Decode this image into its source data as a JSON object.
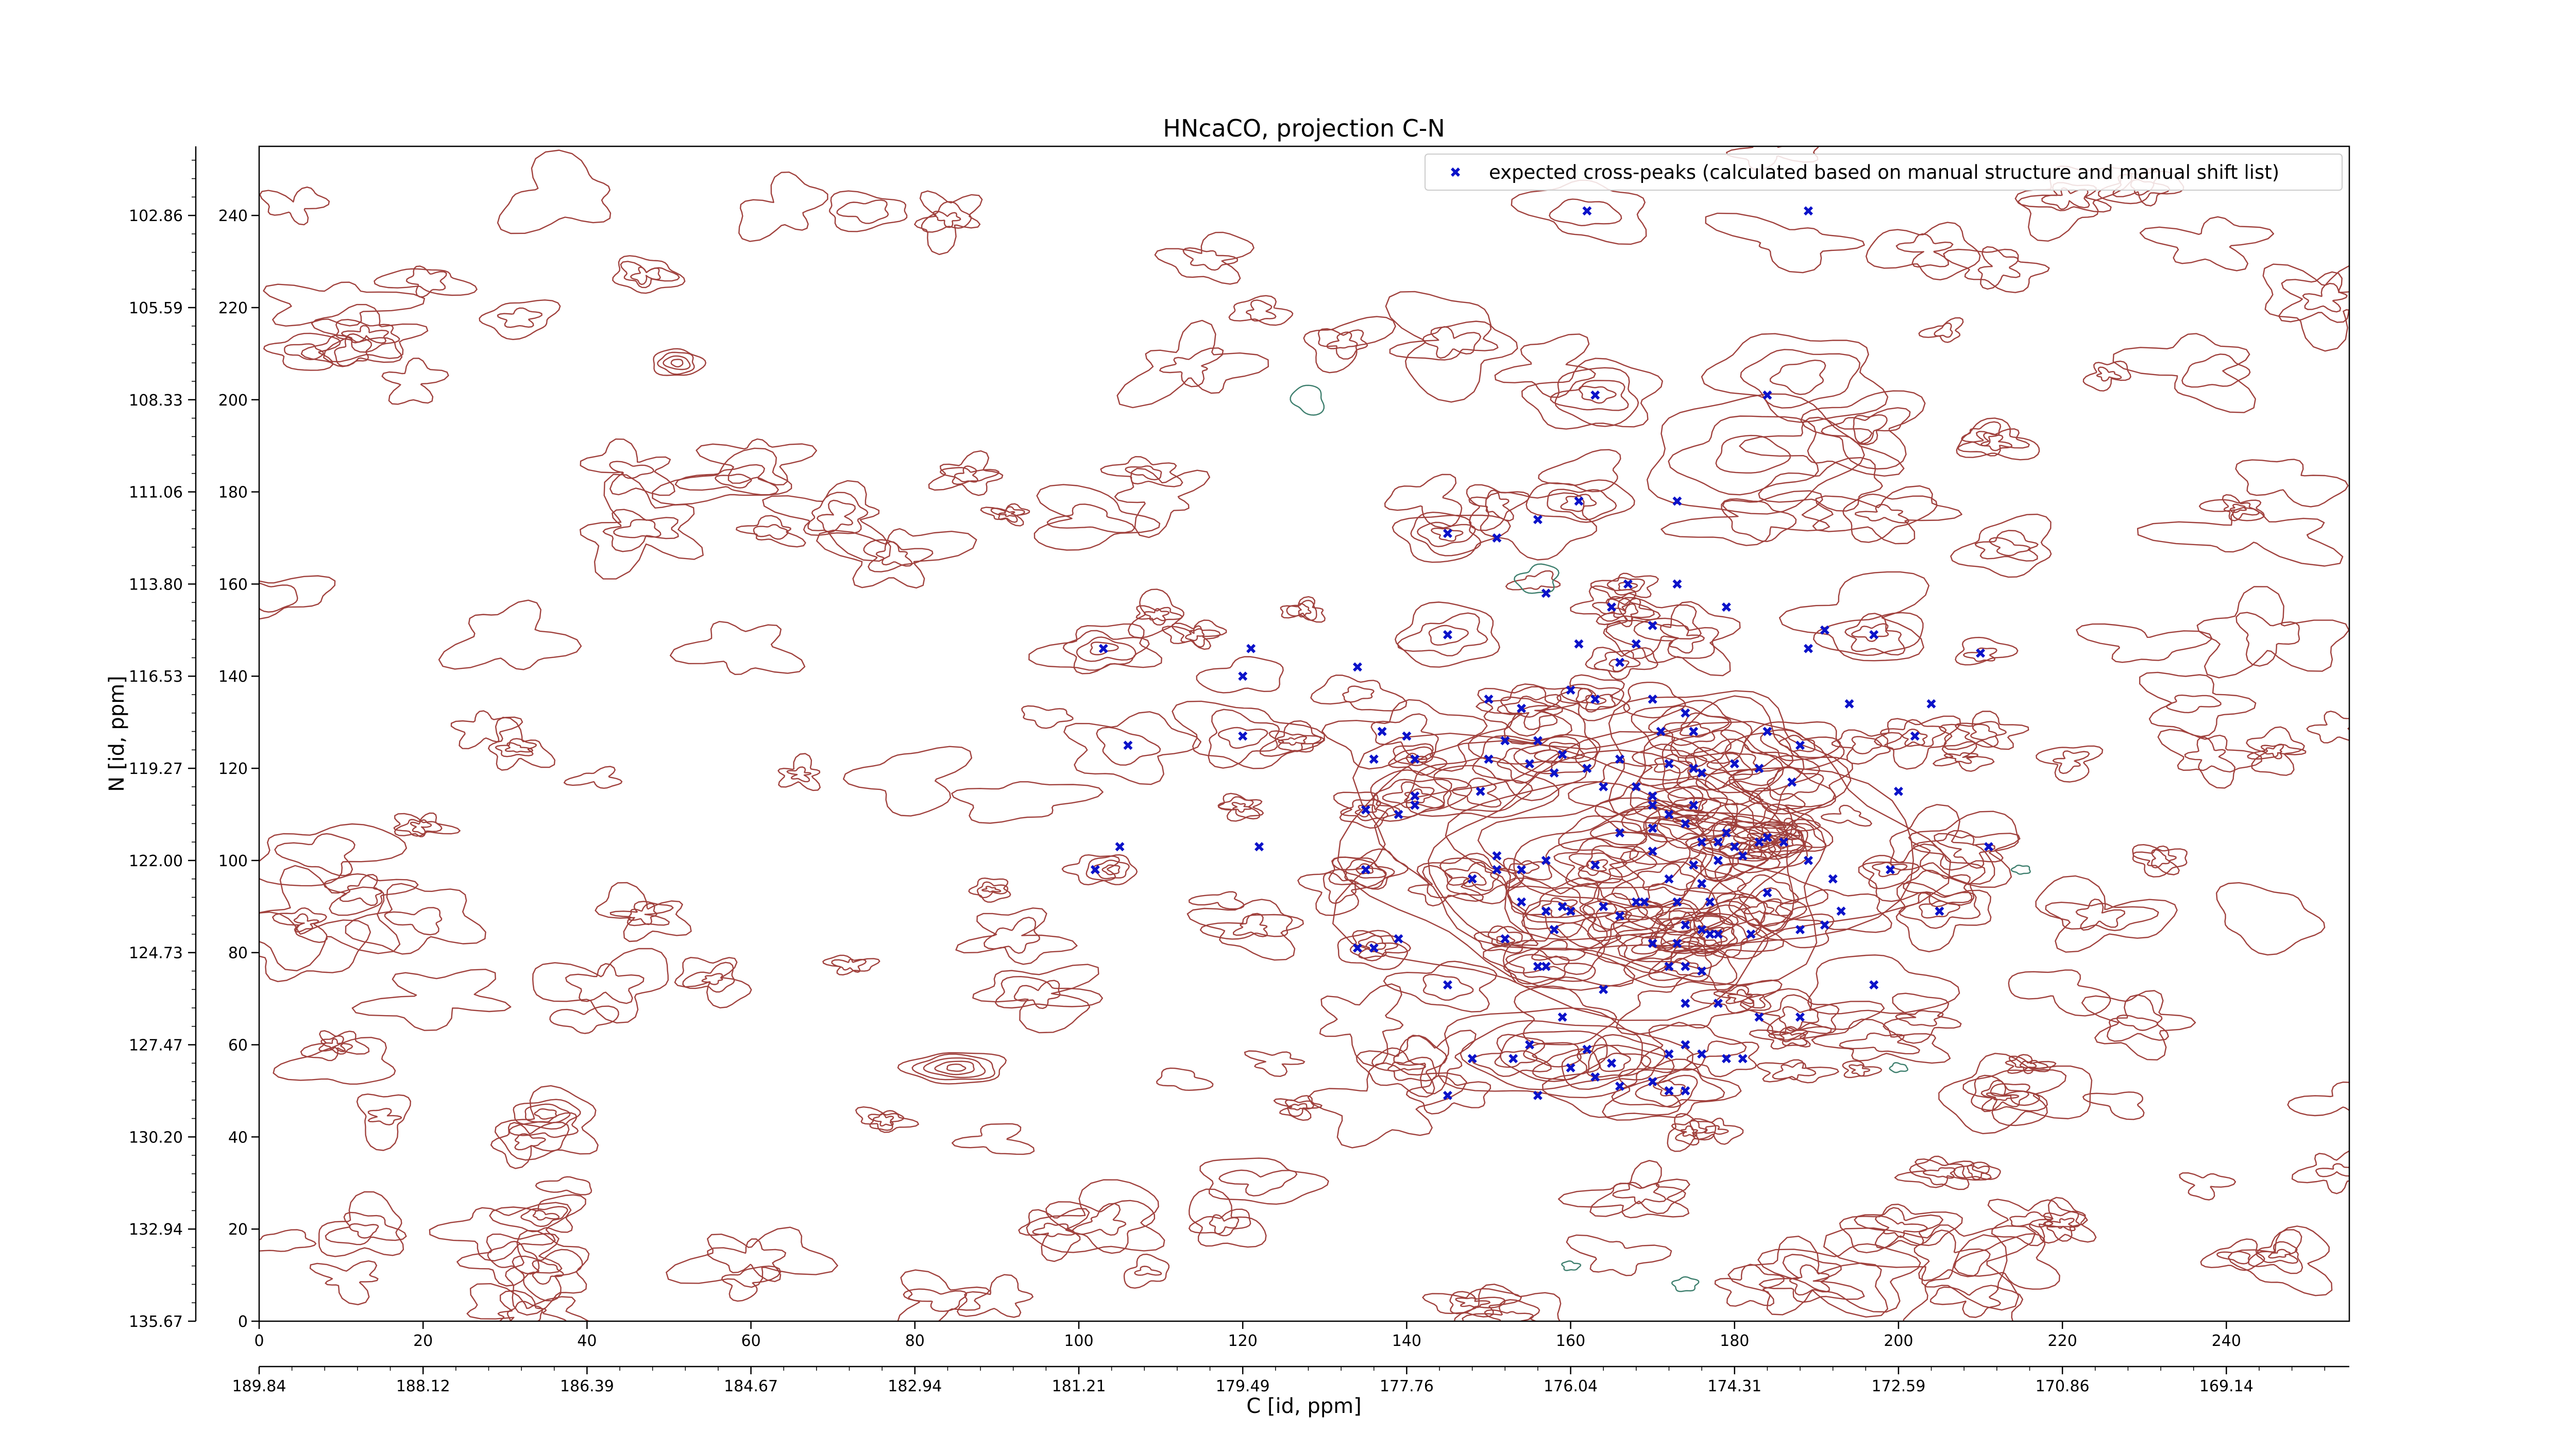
{
  "chart_data": {
    "type": "scatter",
    "title": "HNcaCO, projection C-N",
    "xlabel": "C [id, ppm]",
    "ylabel": "N [id, ppm]",
    "xlim": [
      0,
      255
    ],
    "ylim": [
      0,
      255
    ],
    "x_ticks": [
      0,
      20,
      40,
      60,
      80,
      100,
      120,
      140,
      160,
      180,
      200,
      220,
      240
    ],
    "y_ticks": [
      0,
      20,
      40,
      60,
      80,
      100,
      120,
      140,
      160,
      180,
      200,
      220,
      240
    ],
    "x_ppm_tick_labels": [
      "189.84",
      "188.12",
      "186.39",
      "184.67",
      "182.94",
      "181.21",
      "179.49",
      "177.76",
      "176.04",
      "174.31",
      "172.59",
      "170.86",
      "169.14"
    ],
    "y_ppm_tick_labels": [
      "135.67",
      "132.94",
      "130.20",
      "127.47",
      "124.73",
      "122.00",
      "119.27",
      "116.53",
      "113.80",
      "111.06",
      "108.33",
      "105.59",
      "102.86"
    ],
    "legend": {
      "location": "top-right",
      "label": "expected cross-peaks (calculated based on manual structure and manual shift list)"
    },
    "grid": false,
    "colors": {
      "contour_positive": "#a0413d",
      "contour_negative": "#3e7f6e",
      "marker": "#0b12c9"
    },
    "series": [
      {
        "name": "expected cross-peaks (calculated based on manual structure and manual shift list)",
        "marker": "x-filled",
        "points": [
          [
            162,
            241
          ],
          [
            189,
            241
          ],
          [
            163,
            201
          ],
          [
            184,
            201
          ],
          [
            161,
            178
          ],
          [
            173,
            178
          ],
          [
            145,
            171
          ],
          [
            151,
            170
          ],
          [
            156,
            174
          ],
          [
            173,
            160
          ],
          [
            167,
            160
          ],
          [
            157,
            158
          ],
          [
            165,
            155
          ],
          [
            179,
            155
          ],
          [
            103,
            146
          ],
          [
            121,
            146
          ],
          [
            145,
            149
          ],
          [
            161,
            147
          ],
          [
            166,
            143
          ],
          [
            168,
            147
          ],
          [
            170,
            151
          ],
          [
            191,
            150
          ],
          [
            197,
            149
          ],
          [
            189,
            146
          ],
          [
            210,
            145
          ],
          [
            134,
            142
          ],
          [
            120,
            140
          ],
          [
            150,
            135
          ],
          [
            154,
            133
          ],
          [
            160,
            137
          ],
          [
            163,
            135
          ],
          [
            171,
            128
          ],
          [
            175,
            128
          ],
          [
            184,
            128
          ],
          [
            188,
            125
          ],
          [
            194,
            134
          ],
          [
            202,
            127
          ],
          [
            204,
            134
          ],
          [
            120,
            127
          ],
          [
            152,
            126
          ],
          [
            156,
            126
          ],
          [
            166,
            122
          ],
          [
            183,
            120
          ],
          [
            175,
            120
          ],
          [
            106,
            125
          ],
          [
            137,
            128
          ],
          [
            140,
            127
          ],
          [
            136,
            122
          ],
          [
            141,
            122
          ],
          [
            150,
            122
          ],
          [
            155,
            121
          ],
          [
            158,
            119
          ],
          [
            159,
            123
          ],
          [
            162,
            120
          ],
          [
            172,
            121
          ],
          [
            176,
            119
          ],
          [
            180,
            121
          ],
          [
            200,
            115
          ],
          [
            141,
            114
          ],
          [
            141,
            112
          ],
          [
            135,
            111
          ],
          [
            139,
            110
          ],
          [
            149,
            115
          ],
          [
            164,
            116
          ],
          [
            168,
            116
          ],
          [
            170,
            114
          ],
          [
            170,
            112
          ],
          [
            172,
            110
          ],
          [
            175,
            112
          ],
          [
            170,
            107
          ],
          [
            174,
            108
          ],
          [
            179,
            106
          ],
          [
            176,
            104
          ],
          [
            178,
            104
          ],
          [
            180,
            103
          ],
          [
            184,
            105
          ],
          [
            186,
            104
          ],
          [
            189,
            100
          ],
          [
            199,
            98
          ],
          [
            211,
            103
          ],
          [
            187,
            117
          ],
          [
            174,
            132
          ],
          [
            170,
            135
          ],
          [
            105,
            103
          ],
          [
            102,
            98
          ],
          [
            122,
            103
          ],
          [
            135,
            98
          ],
          [
            151,
            101
          ],
          [
            154,
            98
          ],
          [
            157,
            100
          ],
          [
            163,
            99
          ],
          [
            170,
            102
          ],
          [
            166,
            106
          ],
          [
            175,
            99
          ],
          [
            178,
            100
          ],
          [
            181,
            101
          ],
          [
            183,
            104
          ],
          [
            176,
            95
          ],
          [
            172,
            96
          ],
          [
            169,
            91
          ],
          [
            173,
            91
          ],
          [
            177,
            91
          ],
          [
            184,
            93
          ],
          [
            192,
            96
          ],
          [
            205,
            89
          ],
          [
            151,
            98
          ],
          [
            148,
            96
          ],
          [
            154,
            91
          ],
          [
            159,
            90
          ],
          [
            164,
            90
          ],
          [
            166,
            88
          ],
          [
            158,
            85
          ],
          [
            174,
            86
          ],
          [
            176,
            85
          ],
          [
            178,
            84
          ],
          [
            182,
            84
          ],
          [
            188,
            85
          ],
          [
            191,
            86
          ],
          [
            193,
            89
          ],
          [
            134,
            81
          ],
          [
            136,
            81
          ],
          [
            139,
            83
          ],
          [
            152,
            83
          ],
          [
            157,
            89
          ],
          [
            160,
            89
          ],
          [
            168,
            91
          ],
          [
            177,
            84
          ],
          [
            173,
            82
          ],
          [
            170,
            82
          ],
          [
            172,
            77
          ],
          [
            174,
            77
          ],
          [
            176,
            76
          ],
          [
            156,
            77
          ],
          [
            157,
            77
          ],
          [
            145,
            73
          ],
          [
            164,
            72
          ],
          [
            174,
            69
          ],
          [
            178,
            69
          ],
          [
            197,
            73
          ],
          [
            183,
            66
          ],
          [
            188,
            66
          ],
          [
            155,
            60
          ],
          [
            159,
            66
          ],
          [
            148,
            57
          ],
          [
            153,
            57
          ],
          [
            162,
            59
          ],
          [
            165,
            56
          ],
          [
            172,
            58
          ],
          [
            174,
            60
          ],
          [
            176,
            58
          ],
          [
            179,
            57
          ],
          [
            181,
            57
          ],
          [
            160,
            55
          ],
          [
            163,
            53
          ],
          [
            166,
            51
          ],
          [
            170,
            52
          ],
          [
            172,
            50
          ],
          [
            174,
            50
          ],
          [
            145,
            49
          ],
          [
            156,
            49
          ]
        ]
      }
    ]
  }
}
